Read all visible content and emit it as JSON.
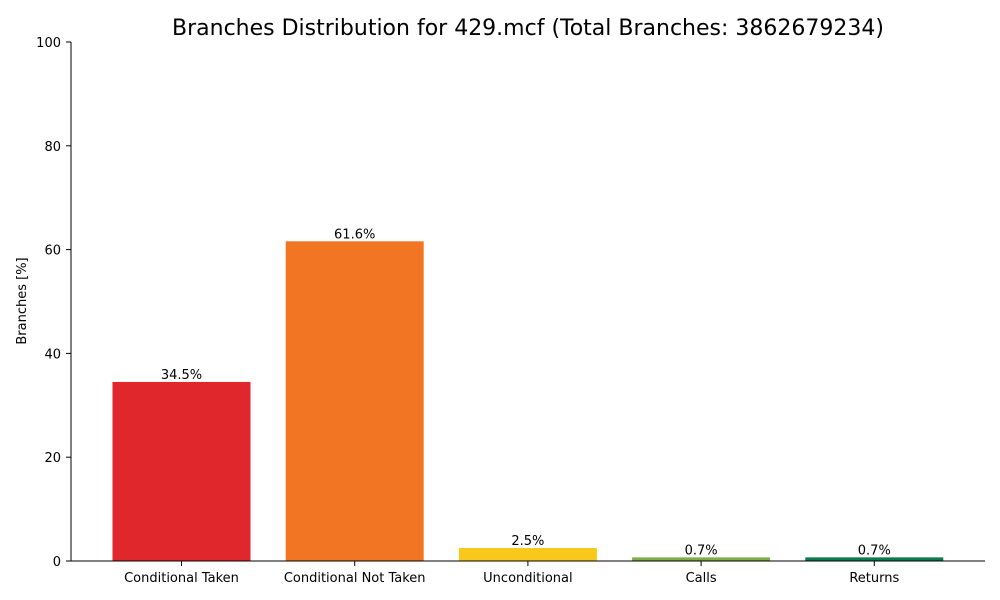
{
  "chart_data": {
    "type": "bar",
    "title": "Branches Distribution for 429.mcf (Total Branches: 3862679234)",
    "xlabel": "",
    "ylabel": "Branches [%]",
    "ylim": [
      0,
      100
    ],
    "yticks": [
      0,
      20,
      40,
      60,
      80,
      100
    ],
    "categories": [
      "Conditional Taken",
      "Conditional Not Taken",
      "Unconditional",
      "Calls",
      "Returns"
    ],
    "values": [
      34.5,
      61.6,
      2.5,
      0.7,
      0.7
    ],
    "value_labels": [
      "34.5%",
      "61.6%",
      "2.5%",
      "0.7%",
      "0.7%"
    ],
    "colors": [
      "#e0272b",
      "#f27524",
      "#f8c81c",
      "#7fad47",
      "#0c7a4d"
    ],
    "grid": false,
    "legend": "none"
  }
}
